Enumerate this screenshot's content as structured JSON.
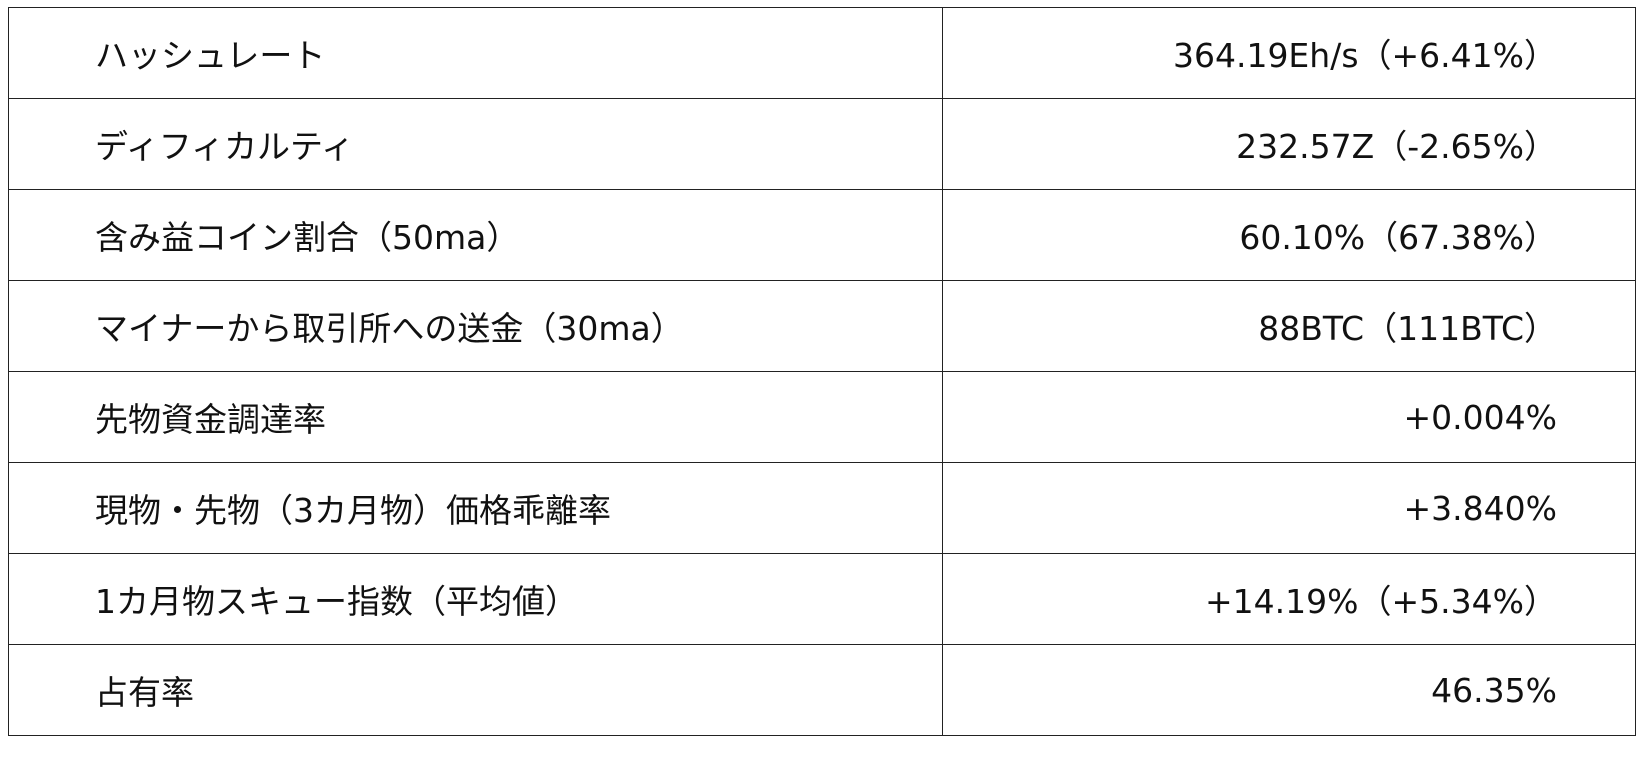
{
  "rows": [
    {
      "label": "ハッシュレート",
      "value": "364.19Eh/s（+6.41%）"
    },
    {
      "label": "ディフィカルティ",
      "value": "232.57Z（-2.65%）"
    },
    {
      "label": "含み益コイン割合（50ma）",
      "value": "60.10%（67.38%）"
    },
    {
      "label": "マイナーから取引所への送金（30ma）",
      "value": "88BTC（111BTC）"
    },
    {
      "label": "先物資金調達率",
      "value": "+0.004%"
    },
    {
      "label": "現物・先物（3カ月物）価格乖離率",
      "value": "+3.840%"
    },
    {
      "label": "1カ月物スキュー指数（平均値）",
      "value": "+14.19%（+5.34%）"
    },
    {
      "label": "占有率",
      "value": "46.35%"
    }
  ]
}
